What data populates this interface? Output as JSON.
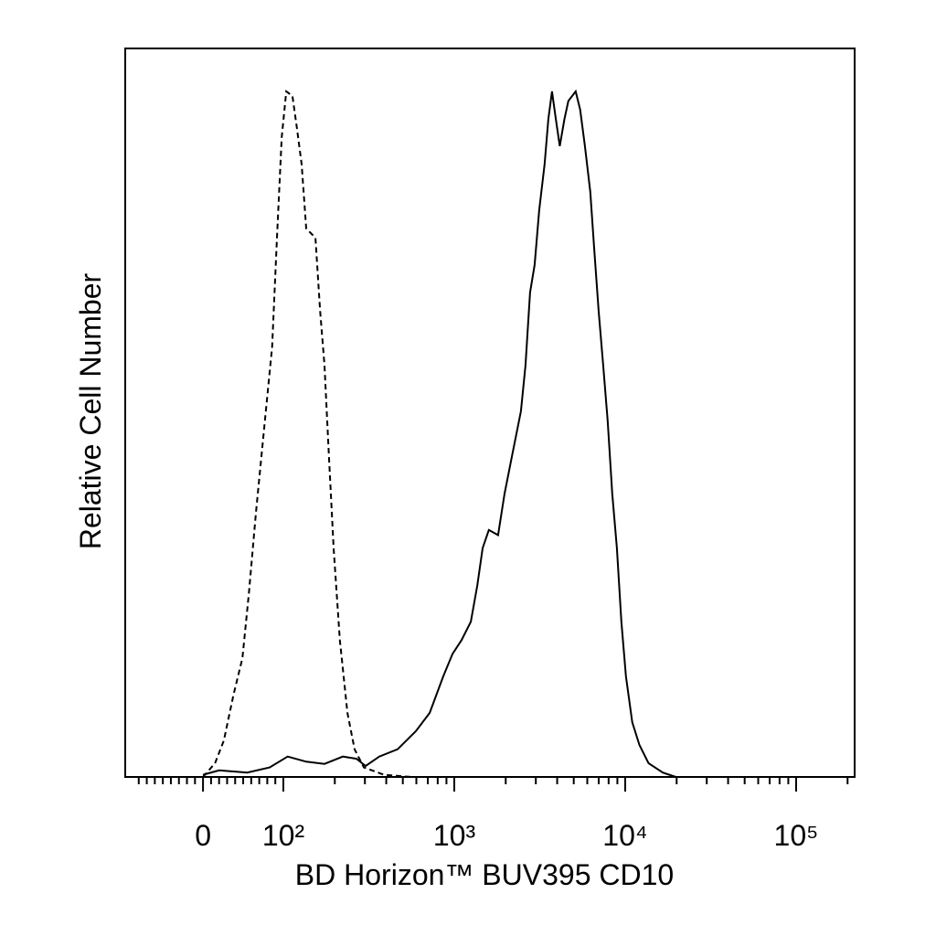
{
  "chart_data": {
    "type": "line",
    "x_label": "BD Horizon™ BUV395 CD10",
    "y_label": "Relative Cell Number",
    "xscale": "biexponential",
    "xlim": [
      -90,
      220000
    ],
    "ylim": [
      0,
      100
    ],
    "xticks": [
      0,
      {
        "value": 100,
        "label": "10²"
      },
      {
        "value": 1000,
        "label": "10³"
      },
      {
        "value": 10000,
        "label": "10⁴"
      },
      {
        "value": 100000,
        "label": "10⁵"
      }
    ],
    "xminorticks": [
      -80,
      -70,
      -60,
      -50,
      -40,
      -30,
      -20,
      -10,
      10,
      20,
      30,
      40,
      50,
      60,
      70,
      80,
      90,
      200,
      300,
      400,
      500,
      600,
      700,
      800,
      900,
      2000,
      3000,
      4000,
      5000,
      6000,
      7000,
      8000,
      9000,
      20000,
      30000,
      40000,
      50000,
      60000,
      70000,
      80000,
      90000,
      200000
    ],
    "series": [
      {
        "color": "#000000",
        "dash": true,
        "x": [
          0,
          15,
          26,
          38,
          49,
          57,
          66,
          77,
          86,
          92,
          98,
          104,
          113,
          120,
          128,
          136,
          154,
          164,
          174,
          185,
          197,
          214,
          237,
          261,
          296,
          388,
          561
        ],
        "values": [
          0,
          1.9,
          5.0,
          11.3,
          16.3,
          25.1,
          36.4,
          48.9,
          59.0,
          74.0,
          87.8,
          94.1,
          93.5,
          89.1,
          84.1,
          75.3,
          74.0,
          64.0,
          56.5,
          43.9,
          31.4,
          18.8,
          8.8,
          3.8,
          1.3,
          0.3,
          0
        ]
      },
      {
        "color": "#000000",
        "dash": false,
        "x": [
          0,
          20,
          55,
          83,
          106,
          136,
          174,
          223,
          268,
          303,
          364,
          466,
          596,
          718,
          862,
          977,
          1104,
          1250,
          1365,
          1465,
          1593,
          1805,
          1969,
          2170,
          2454,
          2610,
          2776,
          2952,
          3140,
          3377,
          3550,
          3730,
          3930,
          4140,
          4410,
          4650,
          5130,
          5450,
          5810,
          6250,
          6570,
          6990,
          7430,
          7900,
          8400,
          8940,
          9500,
          10100,
          11000,
          12100,
          13700,
          16600,
          19800
        ],
        "values": [
          0.3,
          0.9,
          0.6,
          1.3,
          2.8,
          2.1,
          1.8,
          2.8,
          2.5,
          1.5,
          2.8,
          3.8,
          6.3,
          8.8,
          13.8,
          16.9,
          18.8,
          21.3,
          26.3,
          31.4,
          33.9,
          33.2,
          38.9,
          43.9,
          50.2,
          56.5,
          66.5,
          70.3,
          77.8,
          84.1,
          90.3,
          94.1,
          90.3,
          86.6,
          90.3,
          92.8,
          94.1,
          91.6,
          86.6,
          80.3,
          72.8,
          64.0,
          56.5,
          48.9,
          38.9,
          31.4,
          21.3,
          13.8,
          7.5,
          4.4,
          1.9,
          0.6,
          0
        ]
      }
    ]
  }
}
